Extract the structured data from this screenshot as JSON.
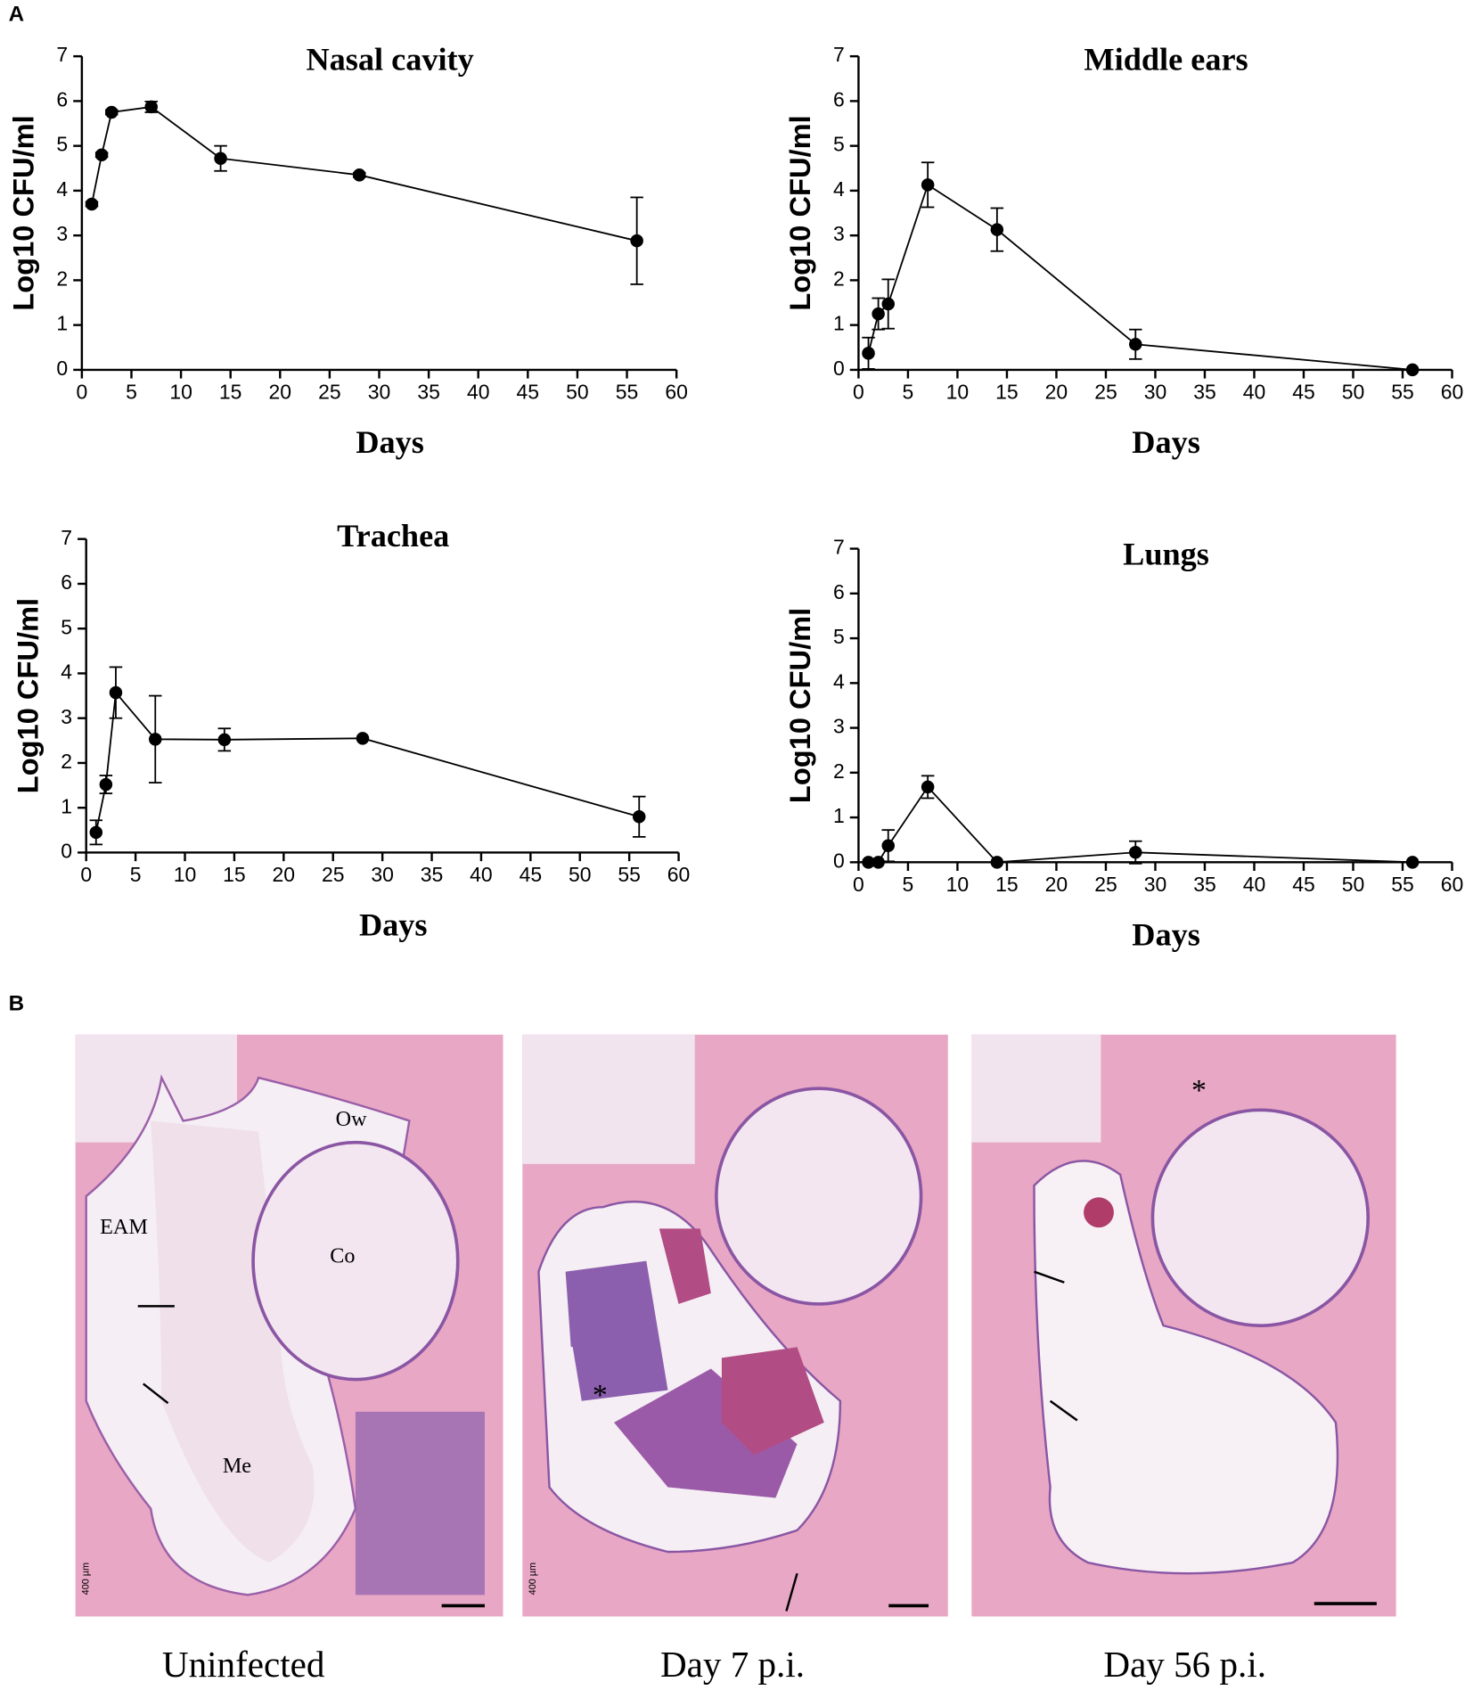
{
  "figure": {
    "panel_a_label": "A",
    "panel_b_label": "B"
  },
  "chart_data": [
    {
      "type": "line",
      "title": "Nasal cavity",
      "x_label": "Days",
      "y_label": "Log10 CFU/ml",
      "x": [
        1,
        2,
        3,
        7,
        14,
        28,
        56
      ],
      "series": [
        {
          "color": "#000000",
          "values": [
            3.7,
            4.8,
            5.75,
            5.87,
            4.72,
            4.35,
            2.88
          ],
          "errors": [
            0.05,
            0.05,
            0.05,
            0.12,
            0.28,
            0.05,
            0.97
          ]
        }
      ],
      "xlim": [
        0,
        60
      ],
      "xticks": [
        0,
        5,
        10,
        15,
        20,
        25,
        30,
        35,
        40,
        45,
        50,
        55,
        60
      ],
      "ylim": [
        0,
        7
      ],
      "yticks": [
        0,
        1,
        2,
        3,
        4,
        5,
        6,
        7
      ]
    },
    {
      "type": "line",
      "title": "Middle ears",
      "x_label": "Days",
      "y_label": "Log10 CFU/ml",
      "x": [
        1,
        2,
        3,
        7,
        14,
        28,
        56
      ],
      "series": [
        {
          "color": "#000000",
          "values": [
            0.37,
            1.25,
            1.47,
            4.13,
            3.13,
            0.57,
            0
          ],
          "errors": [
            0.35,
            0.35,
            0.55,
            0.5,
            0.48,
            0.33,
            0
          ]
        }
      ],
      "xlim": [
        0,
        60
      ],
      "xticks": [
        0,
        5,
        10,
        15,
        20,
        25,
        30,
        35,
        40,
        45,
        50,
        55,
        60
      ],
      "ylim": [
        0,
        7
      ],
      "yticks": [
        0,
        1,
        2,
        3,
        4,
        5,
        6,
        7
      ]
    },
    {
      "type": "line",
      "title": "Trachea",
      "x_label": "Days",
      "y_label": "Log10 CFU/ml",
      "x": [
        1,
        2,
        3,
        7,
        14,
        28,
        56
      ],
      "series": [
        {
          "color": "#000000",
          "values": [
            0.45,
            1.52,
            3.57,
            2.53,
            2.52,
            2.55,
            0.8
          ],
          "errors": [
            0.27,
            0.2,
            0.57,
            0.97,
            0.25,
            0,
            0.45
          ]
        }
      ],
      "xlim": [
        0,
        60
      ],
      "xticks": [
        0,
        5,
        10,
        15,
        20,
        25,
        30,
        35,
        40,
        45,
        50,
        55,
        60
      ],
      "ylim": [
        0,
        7
      ],
      "yticks": [
        0,
        1,
        2,
        3,
        4,
        5,
        6,
        7
      ]
    },
    {
      "type": "line",
      "title": "Lungs",
      "x_label": "Days",
      "y_label": "Log10 CFU/ml",
      "x": [
        1,
        2,
        3,
        7,
        14,
        28,
        56
      ],
      "series": [
        {
          "color": "#000000",
          "values": [
            0,
            0,
            0.37,
            1.68,
            0,
            0.22,
            0
          ],
          "errors": [
            0,
            0,
            0.35,
            0.25,
            0,
            0.25,
            0
          ]
        }
      ],
      "xlim": [
        0,
        60
      ],
      "xticks": [
        0,
        5,
        10,
        15,
        20,
        25,
        30,
        35,
        40,
        45,
        50,
        55,
        60
      ],
      "ylim": [
        0,
        7
      ],
      "yticks": [
        0,
        1,
        2,
        3,
        4,
        5,
        6,
        7
      ]
    }
  ],
  "images": [
    {
      "caption": "Uninfected",
      "labels": [
        "Ow",
        "EAM",
        "Co",
        "Me"
      ],
      "scale": "400 µm"
    },
    {
      "caption": "Day 7 p.i.",
      "labels": [
        "*"
      ],
      "scale": "400 µm"
    },
    {
      "caption": "Day 56 p.i.",
      "labels": [
        "*"
      ]
    }
  ]
}
